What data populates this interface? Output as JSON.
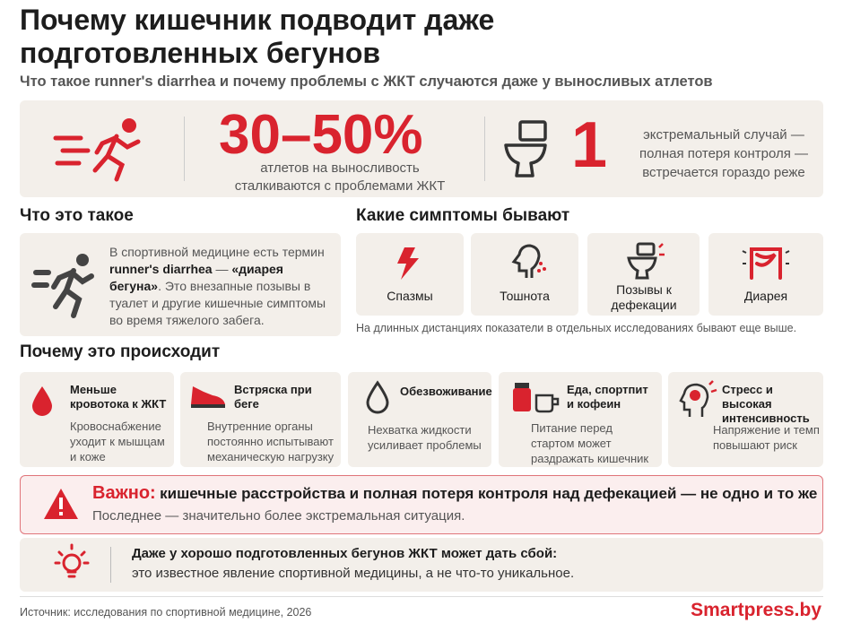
{
  "header": {
    "title": "Почему кишечник подводит даже подготовленных бегунов",
    "subtitle": "Что такое runner's diarrhea и почему проблемы с ЖКТ случаются даже у выносливых атлетов"
  },
  "stats": {
    "main_value": "30–50%",
    "main_text": "атлетов на выносливость сталкиваются с проблемами ЖКТ",
    "extreme_value": "1",
    "extreme_text": "экстремальный случай — полная потеря контроля — встречается гораздо реже"
  },
  "what": {
    "title": "Что это такое",
    "parts": [
      "В спортивной медицине есть термин ",
      "runner's diarrhea",
      " — ",
      "«диарея бегуна»",
      ". Это внезапные позывы в туалет и другие кишечные симптомы во время тяжелого забега."
    ]
  },
  "symptoms": {
    "title": "Какие симптомы бывают",
    "items": [
      "Спазмы",
      "Тошнота",
      "Позывы к дефекации",
      "Диарея"
    ],
    "note": "На длинных дистанциях показатели в отдельных исследованиях бывают еще выше."
  },
  "why": {
    "title": "Почему это происходит",
    "items": [
      {
        "title": "Меньше кровотока к ЖКТ",
        "text": "Кровоснабжение уходит к мышцам и коже"
      },
      {
        "title": "Встряска при беге",
        "text": "Внутренние органы постоянно испытывают механическую нагрузку"
      },
      {
        "title": "Обезвоживание",
        "text": "Нехватка жидкости усиливает проблемы"
      },
      {
        "title": "Еда, спортпит и кофеин",
        "text": "Питание перед стартом может раздражать кишечник"
      },
      {
        "title": "Стресс и высокая интенсивность",
        "text": "Напряжение и темп повышают риск"
      }
    ]
  },
  "important": {
    "label": "Важно:",
    "text": "кишечные расстройства и полная потеря контроля над дефекацией — не одно и то же",
    "subtext": "Последнее — значительно более экстремальная ситуация."
  },
  "tip": {
    "title": "Даже у хорошо подготовленных бегунов ЖКТ может дать сбой:",
    "text": "это известное явление спортивной медицины, а не что-то уникальное."
  },
  "footer": {
    "source": "Источник: исследования по спортивной медицине, 2026",
    "brand": "Smartpress.by"
  }
}
